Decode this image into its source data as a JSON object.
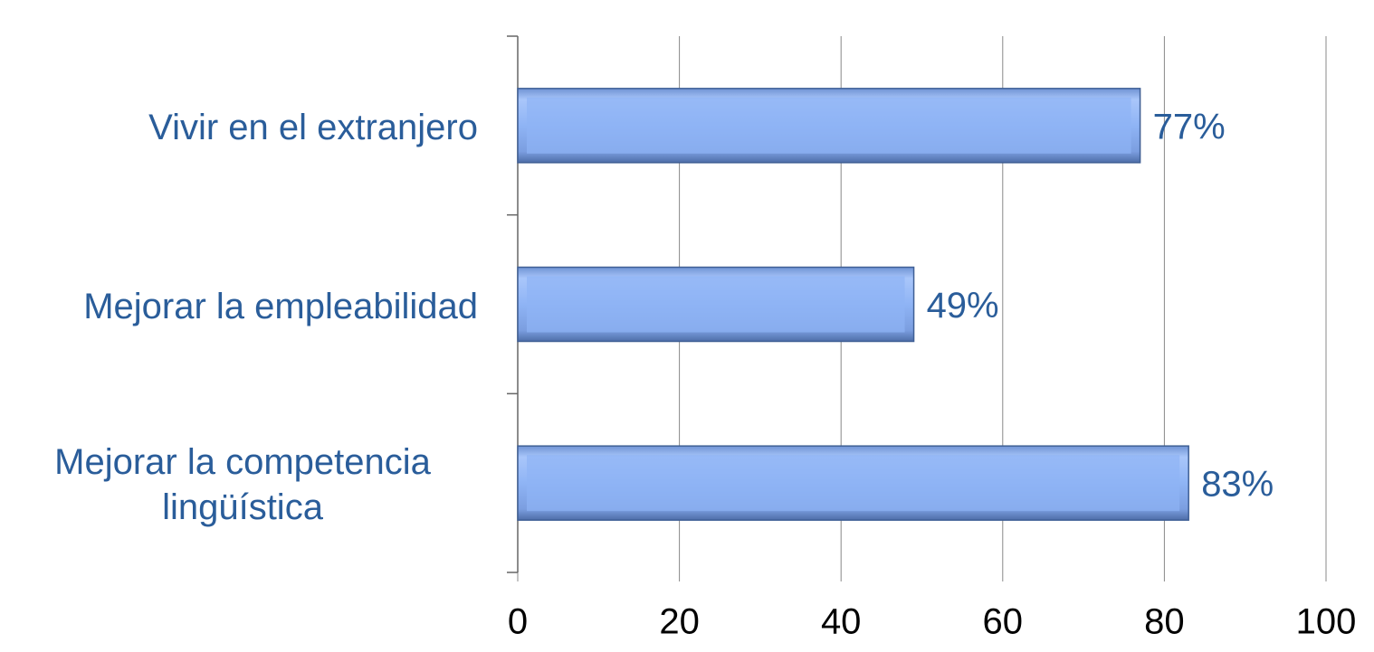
{
  "chart_data": {
    "type": "bar",
    "orientation": "horizontal",
    "categories": [
      "Vivir en el extranjero",
      "Mejorar la empleabilidad",
      "Mejorar la competencia lingüística"
    ],
    "values": [
      77,
      49,
      83
    ],
    "value_labels": [
      "77%",
      "49%",
      "83%"
    ],
    "color": "#8fb4f5",
    "xlim": [
      0,
      100
    ],
    "xticks": [
      0,
      20,
      40,
      60,
      80,
      100
    ],
    "grid": true
  }
}
